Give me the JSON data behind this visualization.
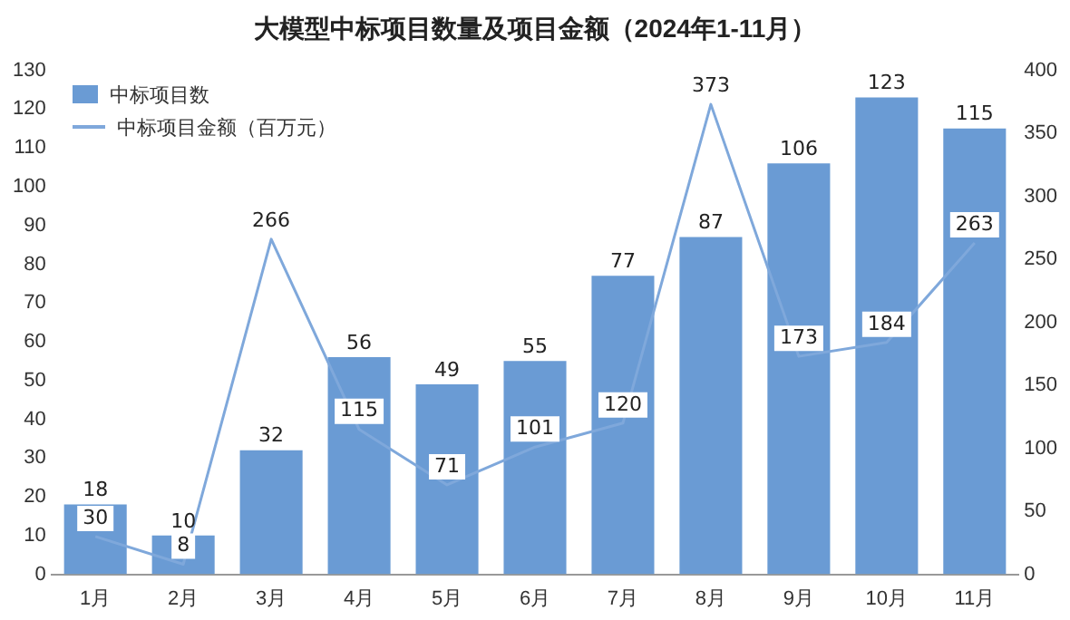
{
  "chart_data": {
    "type": "bar",
    "title": "大模型中标项目数量及项目金额（2024年1-11月）",
    "categories": [
      "1月",
      "2月",
      "3月",
      "4月",
      "5月",
      "6月",
      "7月",
      "8月",
      "9月",
      "10月",
      "11月"
    ],
    "series": [
      {
        "name": "中标项目数",
        "color": "#6a9bd4",
        "values": [
          18,
          10,
          32,
          56,
          49,
          55,
          77,
          87,
          106,
          123,
          115
        ]
      },
      {
        "name": "中标项目金额（百万元）",
        "type": "line",
        "axis": "y2",
        "color": "#7fa8db",
        "values": [
          30,
          8,
          266,
          115,
          71,
          101,
          120,
          373,
          173,
          184,
          263
        ]
      }
    ],
    "ylim": [
      0,
      130
    ],
    "yticks": [
      0,
      10,
      20,
      30,
      40,
      50,
      60,
      70,
      80,
      90,
      100,
      110,
      120,
      130
    ],
    "y2lim": [
      0,
      400
    ],
    "y2ticks": [
      0,
      50,
      100,
      150,
      200,
      250,
      300,
      350,
      400
    ],
    "data_labels": true,
    "grid": false,
    "legend": "top left",
    "marker": "none",
    "line_style": "solid"
  }
}
